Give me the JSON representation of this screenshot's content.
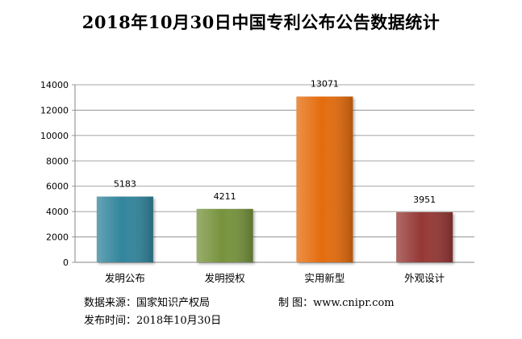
{
  "chart_data": {
    "type": "bar",
    "title": "2018年10月30日中国专利公布公告数据统计",
    "categories": [
      "发明公布",
      "发明授权",
      "实用新型",
      "外观设计"
    ],
    "values": [
      5183,
      4211,
      13071,
      3951
    ],
    "ylim": [
      0,
      14000
    ],
    "yticks": [
      0,
      2000,
      4000,
      6000,
      8000,
      10000,
      12000,
      14000
    ],
    "grid": true,
    "legend": "none",
    "colors": [
      "#31859c",
      "#77933c",
      "#e46c0a",
      "#953735"
    ]
  },
  "footer": {
    "source_label": "数据来源：",
    "source_value": "国家知识产权局",
    "maker_label": "制 图：",
    "maker_value": "www.cnipr.com",
    "date_label": "发布时间：",
    "date_value": "2018年10月30日"
  }
}
